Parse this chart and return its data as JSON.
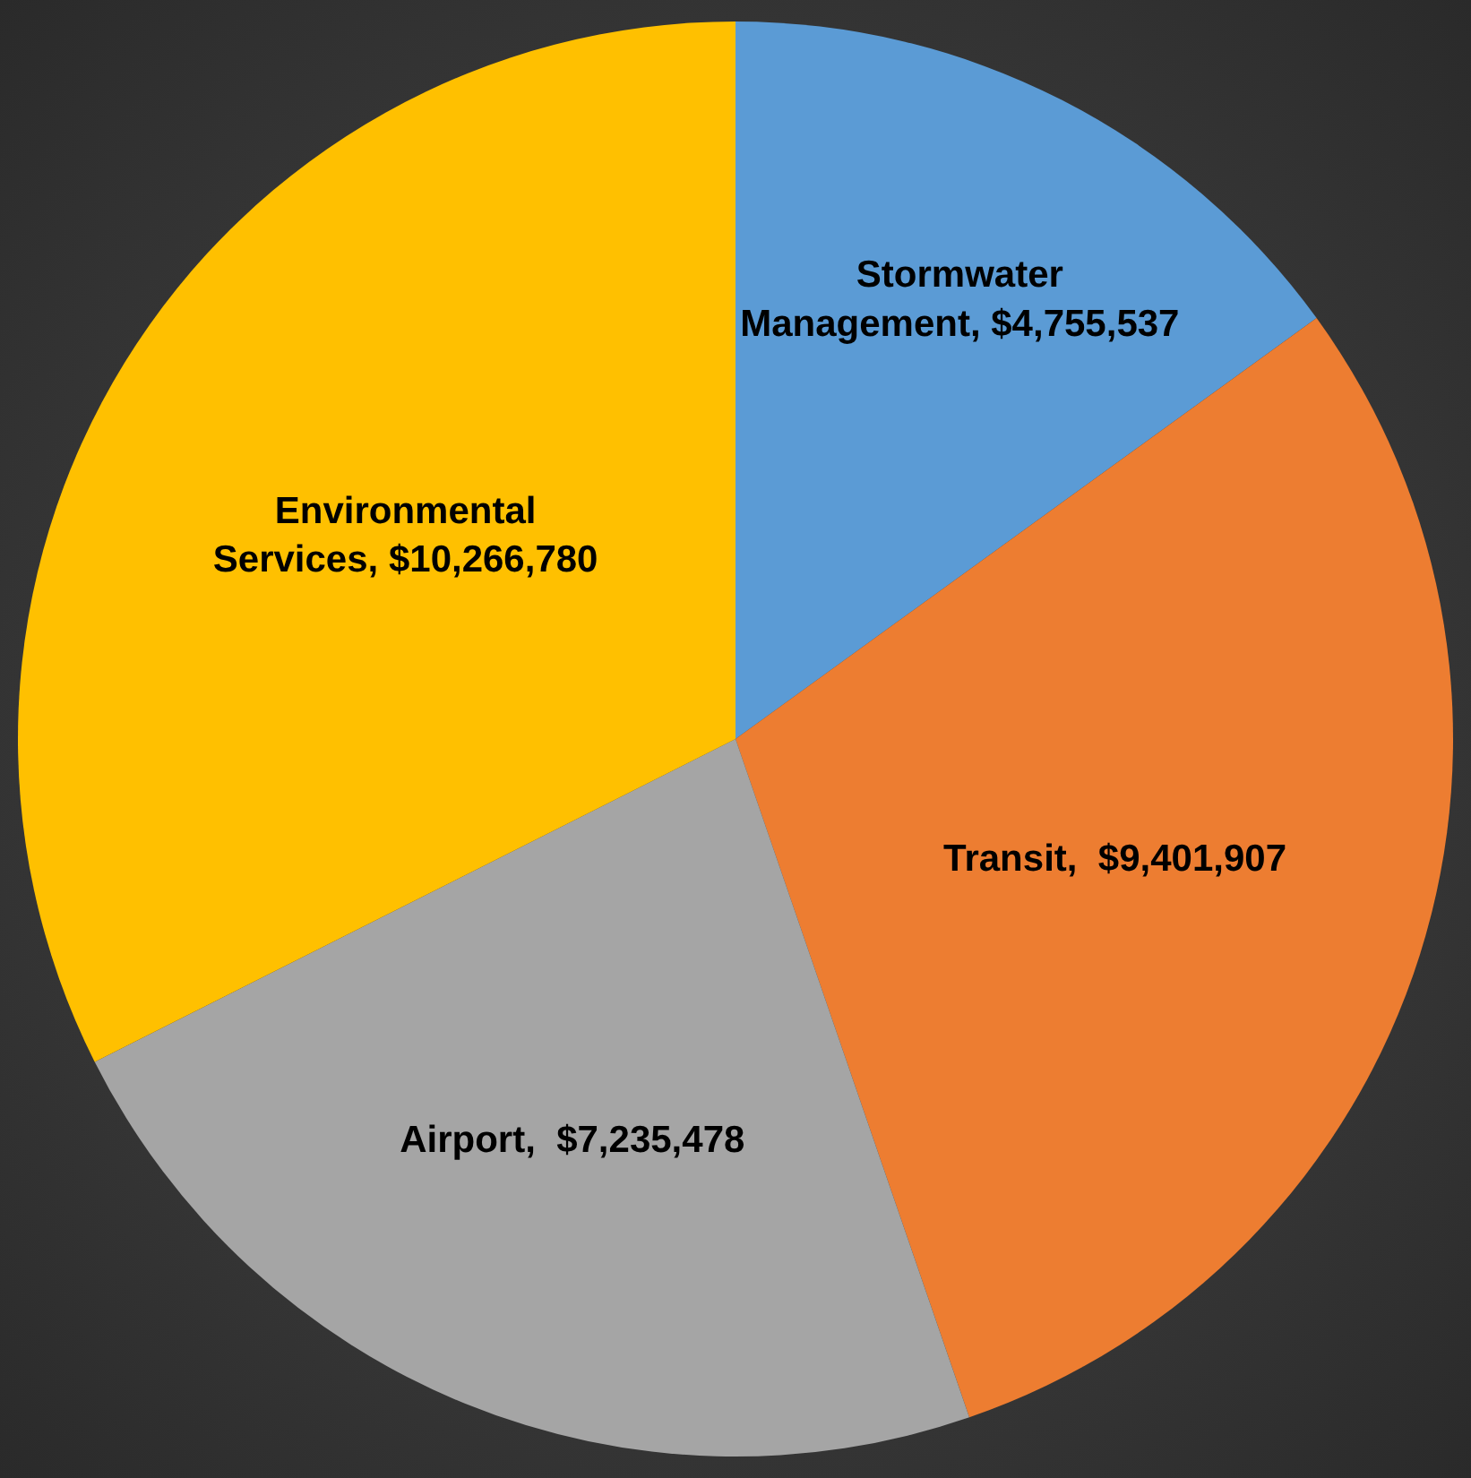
{
  "chart_data": {
    "type": "pie",
    "categories": [
      "Stormwater Management",
      "Transit",
      "Airport",
      "Environmental Services"
    ],
    "values": [
      4755537,
      9401907,
      7235478,
      10266780
    ],
    "value_labels": [
      "$4,755,537",
      "$9,401,907",
      "$7,235,478",
      "$10,266,780"
    ],
    "colors": [
      "#5b9bd5",
      "#ed7d31",
      "#a5a5a5",
      "#ffc000"
    ],
    "legend": false
  }
}
